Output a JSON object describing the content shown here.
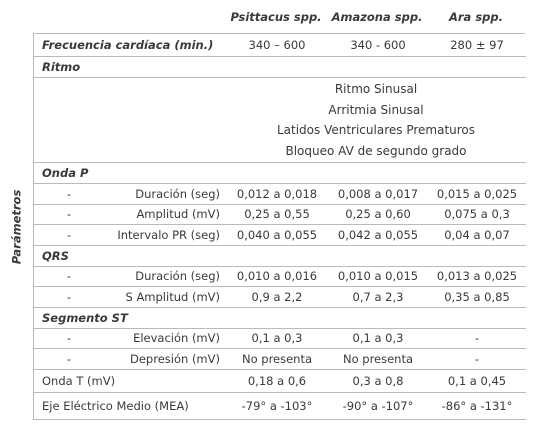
{
  "header": {
    "columns": [
      "Psittacus spp.",
      "Amazona spp.",
      "Ara spp."
    ]
  },
  "side_label": "Parámetros",
  "rows": [
    {
      "label": "Frecuencia cardíaca (min.)",
      "values": [
        "340 – 600",
        "340 - 600",
        "280 ± 97"
      ]
    },
    {
      "section": "Ritmo"
    },
    {
      "lines": [
        "Ritmo Sinusal",
        "Arritmia Sinusal",
        "Latidos Ventriculares Prematuros",
        "Bloqueo AV de segundo grado"
      ]
    },
    {
      "section": "Onda P"
    },
    {
      "marker": "-",
      "label": "Duración (seg)",
      "values": [
        "0,012 a 0,018",
        "0,008 a 0,017",
        "0,015 a 0,025"
      ]
    },
    {
      "marker": "-",
      "label": "Amplitud (mV)",
      "values": [
        "0,25 a 0,55",
        "0,25 a 0,60",
        "0,075 a 0,3"
      ]
    },
    {
      "marker": "-",
      "label": "Intervalo PR (seg)",
      "values": [
        "0,040 a 0,055",
        "0,042 a 0,055",
        "0,04 a 0,07"
      ]
    },
    {
      "section": "QRS"
    },
    {
      "marker": "-",
      "label": "Duración (seg)",
      "values": [
        "0,010 a 0,016",
        "0,010 a 0,015",
        "0,013 a 0,025"
      ]
    },
    {
      "marker": "-",
      "label": "S Amplitud (mV)",
      "values": [
        "0,9 a 2,2",
        "0,7 a 2,3",
        "0,35 a 0,85"
      ]
    },
    {
      "section": "Segmento ST"
    },
    {
      "marker": "-",
      "label": "Elevación (mV)",
      "values": [
        "0,1 a 0,3",
        "0,1 a 0,3",
        "-"
      ]
    },
    {
      "marker": "-",
      "label": "Depresión (mV)",
      "values": [
        "No presenta",
        "No presenta",
        "-"
      ]
    },
    {
      "label": "Onda T (mV)",
      "values": [
        "0,18 a 0,6",
        "0,3 a 0,8",
        "0,1 a 0,45"
      ]
    },
    {
      "label": "Eje Eléctrico Medio (MEA)",
      "values": [
        "-79° a -103°",
        "-90° a -107°",
        "-86° a -131°"
      ]
    }
  ]
}
